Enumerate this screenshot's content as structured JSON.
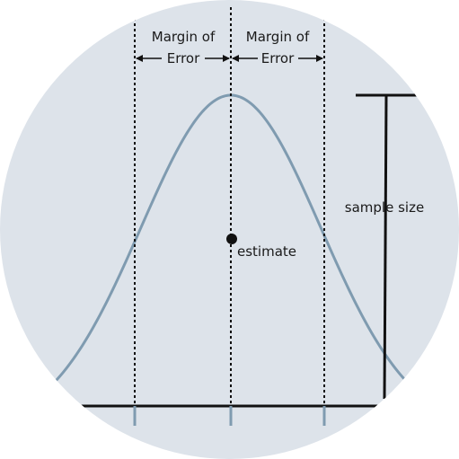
{
  "colors": {
    "background_circle": "#dde3ea",
    "curve": "#7f9bb0",
    "ink": "#111111"
  },
  "labels": {
    "moe_left_line1": "Margin of",
    "moe_left_line2": "Error",
    "moe_right_line1": "Margin of",
    "moe_right_line2": "Error",
    "estimate": "estimate",
    "sample_size": "sample size"
  }
}
